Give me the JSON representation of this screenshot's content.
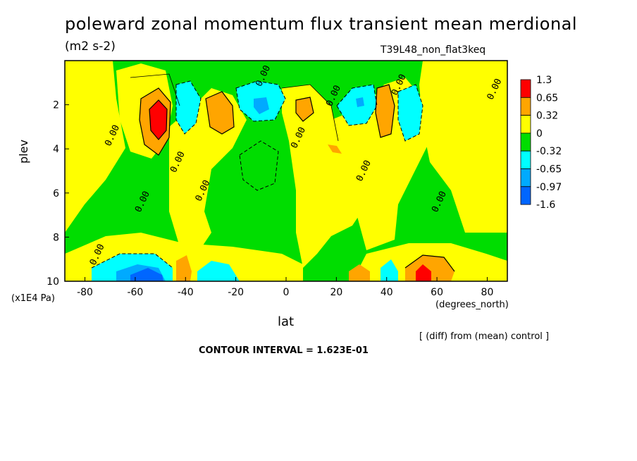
{
  "chart_data": {
    "type": "heatmap",
    "title": "poleward zonal momentum flux transient mean merdional",
    "units": "(m2 s-2)",
    "run_label": "T39L48_non_flat3keq",
    "xlabel": "lat",
    "x_units": "(degrees_north)",
    "ylabel": "plev",
    "y_units": "(x1E4 Pa)",
    "xlim": [
      -88,
      88
    ],
    "ylim": [
      10,
      0
    ],
    "x_ticks": [
      "-80",
      "-60",
      "-40",
      "-20",
      "0",
      "20",
      "40",
      "60",
      "80"
    ],
    "y_ticks": [
      "2",
      "4",
      "6",
      "8",
      "10"
    ],
    "legend_levels": [
      "1.3",
      "0.65",
      "0.32",
      "0",
      "-0.32",
      "-0.65",
      "-0.97",
      "-1.6"
    ],
    "legend_colors": [
      "#ff0000",
      "#ffa500",
      "#ffff00",
      "#00dd00",
      "#00ffff",
      "#00aaff",
      "#0066ff"
    ],
    "contour_labels": [
      "0.00",
      "0.00",
      "0.00",
      "0.00",
      "0.00",
      "0.00",
      "0.00",
      "0.00",
      "0.00",
      "0.00",
      "0.00",
      "0.00"
    ],
    "features": [
      {
        "lat": -52,
        "plev": 2.5,
        "value": 1.3
      },
      {
        "lat": -28,
        "plev": 2.3,
        "value": 0.65
      },
      {
        "lat": 8,
        "plev": 2.2,
        "value": 0.32
      },
      {
        "lat": 38,
        "plev": 2.3,
        "value": 0.65
      },
      {
        "lat": 53,
        "plev": 9.7,
        "value": 1.3
      },
      {
        "lat": -40,
        "plev": 2.5,
        "value": -0.65
      },
      {
        "lat": -10,
        "plev": 2.0,
        "value": -0.65
      },
      {
        "lat": 27,
        "plev": 2.1,
        "value": -0.65
      },
      {
        "lat": -57,
        "plev": 9.6,
        "value": -0.97
      }
    ]
  },
  "annotations": {
    "diff_note": "[ (diff) from (mean) control ]",
    "contour_interval": "CONTOUR INTERVAL = 1.623E-01"
  },
  "colors": {
    "red": "#ff0000",
    "orange": "#ffa500",
    "yellow": "#ffff00",
    "green": "#00dd00",
    "cyan": "#00ffff",
    "lightblue": "#00aaff",
    "blue": "#0066ff"
  }
}
